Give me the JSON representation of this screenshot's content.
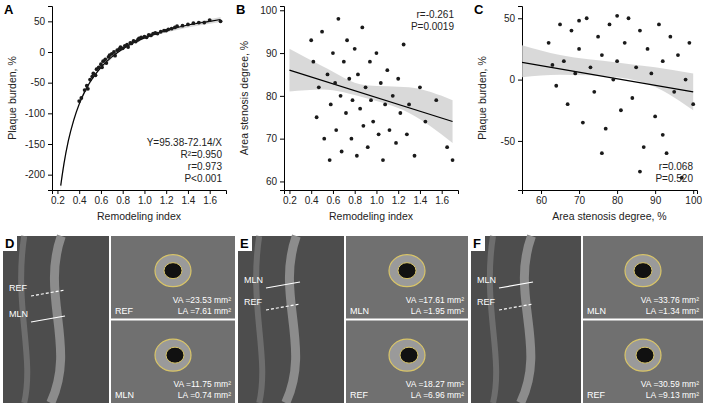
{
  "chart_data": [
    {
      "type": "scatter",
      "title": "A",
      "x_label": "Remodeling index",
      "y_label": "Plaque burden, %",
      "xlim": [
        0.15,
        1.75
      ],
      "xticks": [
        0.2,
        0.4,
        0.6,
        0.8,
        {
          "value": 1,
          "label": "1.0"
        },
        1.2,
        1.4,
        1.6
      ],
      "ylim": [
        -225,
        75
      ],
      "yticks": [
        -200,
        -150,
        -100,
        -50,
        0,
        50
      ],
      "grid": false,
      "annotations": [
        "Y=95.38-72.14/X",
        "R²=0.950",
        "r=0.973",
        "P<0.001"
      ],
      "series": [
        {
          "type": "area",
          "color": "#cfcfcf",
          "x": [
            0.23,
            0.3,
            0.4,
            0.5,
            0.7,
            1.0,
            1.3,
            1.7
          ],
          "lower": [
            -226,
            -150,
            -89,
            -52,
            -11,
            21,
            36,
            49
          ],
          "upper": [
            -210,
            -140,
            -81,
            -46,
            -5,
            25,
            41,
            57
          ]
        },
        {
          "type": "line",
          "color": "#000000",
          "line_style": "solid",
          "x": [
            0.23,
            0.26,
            0.3,
            0.35,
            0.4,
            0.45,
            0.5,
            0.6,
            0.7,
            0.8,
            0.9,
            1.0,
            1.2,
            1.4,
            1.6,
            1.7
          ],
          "values": [
            -218,
            -182,
            -145,
            -111,
            -85,
            -65,
            -49,
            -25,
            -8,
            5,
            15,
            23,
            35,
            44,
            50,
            53
          ]
        },
        {
          "type": "scatter",
          "color": "#1a1a1a",
          "marker": "circle",
          "x": [
            0.4,
            0.42,
            0.45,
            0.47,
            0.48,
            0.5,
            0.52,
            0.53,
            0.55,
            0.56,
            0.58,
            0.6,
            0.61,
            0.62,
            0.64,
            0.65,
            0.67,
            0.68,
            0.7,
            0.72,
            0.73,
            0.75,
            0.77,
            0.78,
            0.8,
            0.82,
            0.84,
            0.85,
            0.87,
            0.88,
            0.9,
            0.92,
            0.94,
            0.95,
            0.97,
            1.0,
            1.02,
            1.04,
            1.06,
            1.08,
            1.1,
            1.12,
            1.15,
            1.18,
            1.2,
            1.22,
            1.25,
            1.28,
            1.3,
            1.35,
            1.4,
            1.45,
            1.5,
            1.55,
            1.6,
            1.7
          ],
          "values": [
            -80,
            -75,
            -62,
            -55,
            -60,
            -45,
            -40,
            -35,
            -38,
            -28,
            -25,
            -20,
            -25,
            -15,
            -12,
            -18,
            -8,
            -5,
            -3,
            0,
            -6,
            3,
            5,
            8,
            6,
            10,
            12,
            8,
            15,
            14,
            18,
            17,
            20,
            22,
            24,
            25,
            24,
            28,
            27,
            30,
            31,
            30,
            33,
            35,
            35,
            37,
            38,
            40,
            42,
            43,
            45,
            47,
            48,
            48,
            52,
            50
          ]
        }
      ]
    },
    {
      "type": "scatter",
      "title": "B",
      "x_label": "Remodeling index",
      "y_label": "Area stenosis degree, %",
      "xlim": [
        0.15,
        1.75
      ],
      "xticks": [
        0.2,
        0.4,
        0.6,
        0.8,
        {
          "value": 1,
          "label": "1.0"
        },
        1.2,
        1.4,
        1.6
      ],
      "ylim": [
        58,
        101
      ],
      "yticks": [
        60,
        70,
        80,
        90,
        100
      ],
      "grid": false,
      "annotations": [
        "r=-0.261",
        "P=0.0019"
      ],
      "series": [
        {
          "type": "area",
          "color": "#cfcfcf",
          "x": [
            0.2,
            0.5,
            0.9,
            1.3,
            1.7
          ],
          "lower": [
            81,
            81.5,
            79.5,
            76,
            69
          ],
          "upper": [
            91,
            87,
            82.5,
            82,
            79
          ]
        },
        {
          "type": "line",
          "color": "#000000",
          "line_style": "solid",
          "x": [
            0.2,
            1.7
          ],
          "values": [
            86,
            74
          ]
        },
        {
          "type": "scatter",
          "color": "#1a1a1a",
          "marker": "circle",
          "x": [
            0.4,
            0.42,
            0.45,
            0.47,
            0.5,
            0.52,
            0.55,
            0.57,
            0.58,
            0.6,
            0.62,
            0.63,
            0.65,
            0.67,
            0.68,
            0.7,
            0.72,
            0.73,
            0.75,
            0.77,
            0.78,
            0.8,
            0.82,
            0.83,
            0.85,
            0.87,
            0.88,
            0.9,
            0.92,
            0.94,
            0.95,
            0.97,
            1.0,
            1.02,
            1.04,
            1.06,
            1.08,
            1.1,
            1.12,
            1.15,
            1.18,
            1.2,
            1.22,
            1.25,
            1.28,
            1.3,
            1.35,
            1.4,
            1.45,
            1.55,
            1.65,
            1.7
          ],
          "values": [
            93,
            88,
            75,
            82,
            95,
            70,
            85,
            65,
            78,
            90,
            83,
            72,
            98,
            80,
            67,
            88,
            76,
            93,
            84,
            70,
            79,
            91,
            66,
            85,
            77,
            96,
            73,
            82,
            68,
            88,
            79,
            74,
            90,
            71,
            83,
            65,
            78,
            86,
            72,
            80,
            69,
            84,
            76,
            92,
            71,
            78,
            66,
            82,
            74,
            79,
            68,
            65
          ]
        }
      ]
    },
    {
      "type": "scatter",
      "title": "C",
      "x_label": "Area stenosis degree, %",
      "y_label": "Plaque burden, %",
      "xlim": [
        55,
        101
      ],
      "xticks": [
        60,
        70,
        80,
        90,
        100
      ],
      "ylim": [
        -90,
        60
      ],
      "yticks": [
        -50,
        0,
        50
      ],
      "grid": false,
      "annotations": [
        "r=0.068",
        "P=0.520"
      ],
      "series": [
        {
          "type": "area",
          "color": "#cfcfcf",
          "x": [
            55,
            65,
            80,
            90,
            100
          ],
          "lower": [
            2,
            4,
            2,
            -6,
            -25
          ],
          "upper": [
            28,
            20,
            14,
            10,
            5
          ]
        },
        {
          "type": "line",
          "color": "#000000",
          "line_style": "solid",
          "x": [
            55,
            100
          ],
          "values": [
            14,
            -10
          ]
        },
        {
          "type": "scatter",
          "color": "#1a1a1a",
          "marker": "circle",
          "x": [
            62,
            64,
            65,
            66,
            67,
            68,
            69,
            70,
            71,
            72,
            73,
            74,
            75,
            76,
            77,
            78,
            79,
            80,
            81,
            82,
            83,
            84,
            85,
            86,
            87,
            88,
            89,
            90,
            91,
            92,
            93,
            94,
            95,
            96,
            97,
            98,
            99,
            100,
            63,
            76,
            86,
            70,
            92,
            80
          ],
          "values": [
            30,
            -5,
            45,
            15,
            -20,
            40,
            5,
            25,
            -35,
            50,
            10,
            -10,
            35,
            20,
            -40,
            45,
            0,
            15,
            -25,
            30,
            50,
            -15,
            10,
            40,
            -55,
            25,
            5,
            -30,
            45,
            15,
            -60,
            35,
            -10,
            20,
            -80,
            0,
            30,
            -20,
            12,
            -60,
            -75,
            48,
            -45,
            52
          ]
        }
      ]
    }
  ],
  "images": [
    {
      "label": "D",
      "overview_labels": [
        {
          "text": "REF",
          "line_style": "dashed"
        },
        {
          "text": "MLN",
          "line_style": "solid"
        }
      ],
      "insets": [
        {
          "label": "REF",
          "va": "VA =23.53 mm²",
          "la": "LA =7.61 mm²"
        },
        {
          "label": "MLN",
          "va": "VA =11.75 mm²",
          "la": "LA =0.74 mm²"
        }
      ]
    },
    {
      "label": "E",
      "overview_labels": [
        {
          "text": "MLN",
          "line_style": "solid"
        },
        {
          "text": "REF",
          "line_style": "dashed"
        }
      ],
      "insets": [
        {
          "label": "MLN",
          "va": "VA =17.61 mm²",
          "la": "LA =1.95 mm²"
        },
        {
          "label": "REF",
          "va": "VA =18.27 mm²",
          "la": "LA =6.96 mm²"
        }
      ]
    },
    {
      "label": "F",
      "overview_labels": [
        {
          "text": "MLN",
          "line_style": "solid"
        },
        {
          "text": "REF",
          "line_style": "dashed"
        }
      ],
      "insets": [
        {
          "label": "MLN",
          "va": "VA =33.76 mm²",
          "la": "LA =1.34 mm²"
        },
        {
          "label": "REF",
          "va": "VA =30.59 mm²",
          "la": "LA =9.13 mm²"
        }
      ]
    }
  ]
}
